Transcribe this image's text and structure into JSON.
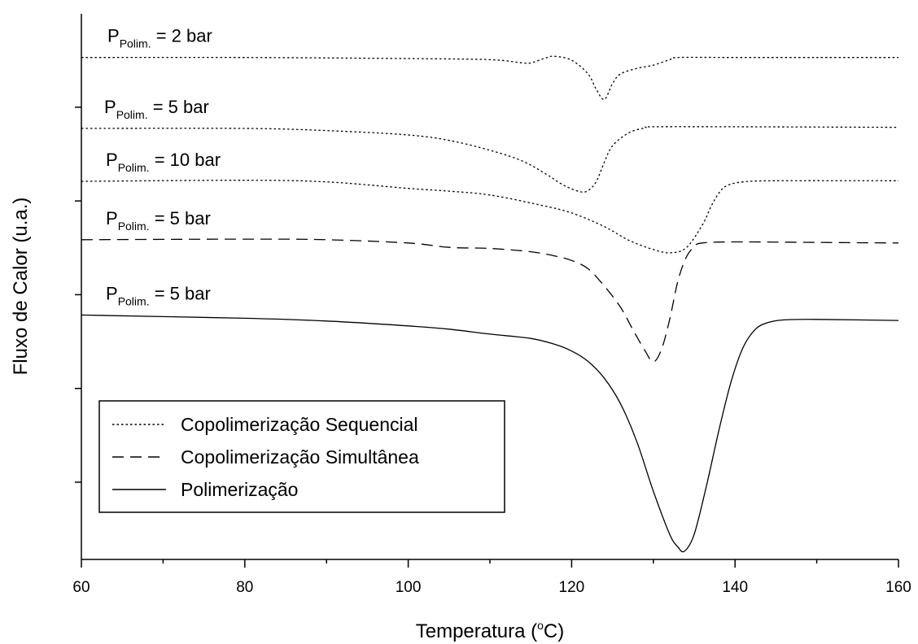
{
  "chart_data": {
    "type": "line",
    "title": "",
    "xlabel": "Temperatura (°C)",
    "xlabel_parts": {
      "main": "Temperatura (",
      "sup": "o",
      "unit": "C)"
    },
    "ylabel": "Fluxo de Calor (u.a.)",
    "xlim": [
      60,
      160
    ],
    "x_ticks": [
      60,
      80,
      100,
      120,
      140,
      160
    ],
    "x_tick_labels": [
      "60",
      "80",
      "100",
      "120",
      "140",
      "160"
    ],
    "y_ticks_labeled": false,
    "y_units": "u.a.",
    "ylim": [
      0,
      100
    ],
    "grid": false,
    "legend_position": "bottom-left",
    "legend": [
      {
        "label": "Copolimerização Sequencial",
        "style": "dotted"
      },
      {
        "label": "Copolimerização Simultânea",
        "style": "dashed"
      },
      {
        "label": "Polimerização",
        "style": "solid"
      }
    ],
    "series": [
      {
        "legend": "Copolimerização Sequencial",
        "label_main": "P",
        "label_sub": "Polim.",
        "label_tail": " = 2 bar",
        "style": "dotted",
        "points": [
          [
            60,
            92
          ],
          [
            80,
            92
          ],
          [
            100,
            91.8
          ],
          [
            110,
            91.6
          ],
          [
            114,
            91
          ],
          [
            115,
            91
          ],
          [
            117,
            92
          ],
          [
            118,
            92.2
          ],
          [
            120,
            91.5
          ],
          [
            122,
            89
          ],
          [
            123,
            86.2
          ],
          [
            124,
            84.3
          ],
          [
            125,
            87.2
          ],
          [
            126,
            89
          ],
          [
            128,
            90
          ],
          [
            130,
            90.6
          ],
          [
            132,
            91.6
          ],
          [
            133,
            92
          ],
          [
            140,
            92
          ],
          [
            150,
            92
          ],
          [
            160,
            92
          ]
        ]
      },
      {
        "legend": "Copolimerização Sequencial",
        "label_main": "P",
        "label_sub": "Polim.",
        "label_tail": " = 5 bar",
        "style": "dotted",
        "points": [
          [
            60,
            79
          ],
          [
            80,
            79
          ],
          [
            90,
            78.6
          ],
          [
            100,
            77.8
          ],
          [
            105,
            76.8
          ],
          [
            110,
            75
          ],
          [
            114,
            73
          ],
          [
            117,
            70.5
          ],
          [
            119,
            68.6
          ],
          [
            121,
            67.4
          ],
          [
            122,
            67.6
          ],
          [
            123,
            69.2
          ],
          [
            124,
            72.8
          ],
          [
            125,
            75.8
          ],
          [
            127,
            78.2
          ],
          [
            129,
            79.1
          ],
          [
            130,
            79.3
          ],
          [
            140,
            79.3
          ],
          [
            160,
            79.2
          ]
        ]
      },
      {
        "legend": "Copolimerização Sequencial",
        "label_main": "P",
        "label_sub": "Polim.",
        "label_tail": " = 10 bar",
        "style": "dotted",
        "points": [
          [
            60,
            69.3
          ],
          [
            80,
            69.5
          ],
          [
            90,
            69.2
          ],
          [
            100,
            68
          ],
          [
            105,
            67.5
          ],
          [
            110,
            66.8
          ],
          [
            116,
            65
          ],
          [
            120,
            63.5
          ],
          [
            124,
            61
          ],
          [
            127,
            58.5
          ],
          [
            130,
            56.8
          ],
          [
            132,
            56.2
          ],
          [
            134,
            57.1
          ],
          [
            136,
            61.3
          ],
          [
            137,
            64.5
          ],
          [
            138,
            67.1
          ],
          [
            139,
            68.5
          ],
          [
            141,
            69.2
          ],
          [
            145,
            69.4
          ],
          [
            160,
            69.4
          ]
        ]
      },
      {
        "legend": "Copolimerização Simultânea",
        "label_main": "P",
        "label_sub": "Polim.",
        "label_tail": " = 5 bar",
        "style": "dashed",
        "points": [
          [
            60,
            58.6
          ],
          [
            80,
            58.7
          ],
          [
            90,
            58.6
          ],
          [
            100,
            58
          ],
          [
            105,
            57.2
          ],
          [
            110,
            57
          ],
          [
            115,
            56.4
          ],
          [
            118,
            55.6
          ],
          [
            120,
            54.8
          ],
          [
            122,
            53.3
          ],
          [
            124,
            50.1
          ],
          [
            126,
            46.2
          ],
          [
            127.5,
            42.1
          ],
          [
            129,
            38.2
          ],
          [
            130,
            36.2
          ],
          [
            131,
            38.5
          ],
          [
            132,
            44
          ],
          [
            133,
            51
          ],
          [
            134,
            55.3
          ],
          [
            135,
            57.3
          ],
          [
            136,
            58
          ],
          [
            140,
            58.2
          ],
          [
            150,
            58.1
          ],
          [
            160,
            58
          ]
        ]
      },
      {
        "legend": "Polimerização",
        "label_main": "P",
        "label_sub": "Polim.",
        "label_tail": " = 5 bar",
        "style": "solid",
        "points": [
          [
            60,
            44.8
          ],
          [
            80,
            44.2
          ],
          [
            90,
            43.7
          ],
          [
            100,
            42.8
          ],
          [
            105,
            42.2
          ],
          [
            110,
            41.3
          ],
          [
            115,
            40.5
          ],
          [
            118,
            39.4
          ],
          [
            120,
            38.2
          ],
          [
            122,
            36.3
          ],
          [
            124,
            33.2
          ],
          [
            126,
            28.5
          ],
          [
            128,
            21.5
          ],
          [
            130,
            12.5
          ],
          [
            132,
            4.6
          ],
          [
            133,
            2.3
          ],
          [
            133.8,
            1.5
          ],
          [
            135,
            4.6
          ],
          [
            136.5,
            13.5
          ],
          [
            138,
            23.5
          ],
          [
            139.5,
            32.5
          ],
          [
            141,
            38.9
          ],
          [
            142.5,
            42.2
          ],
          [
            144,
            43.4
          ],
          [
            146,
            43.9
          ],
          [
            150,
            44
          ],
          [
            160,
            43.8
          ]
        ]
      }
    ]
  }
}
